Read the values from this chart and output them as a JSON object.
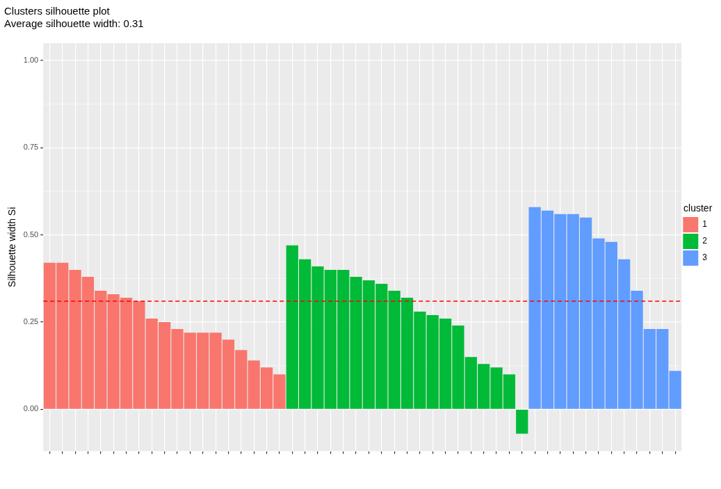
{
  "chart_data": {
    "type": "bar",
    "title": "Clusters silhouette plot",
    "subtitle": "Average silhouette width: 0.31",
    "ylabel": "Silhouette width Si",
    "legend_title": "cluster",
    "categories": [
      null,
      null,
      null,
      null,
      null,
      null,
      null,
      null,
      null,
      null,
      null,
      null,
      null,
      null,
      null,
      null,
      null,
      null,
      null,
      null,
      null,
      null,
      null,
      null,
      null,
      null,
      null,
      null,
      null,
      null,
      null,
      null,
      null,
      null,
      null,
      null,
      null,
      null,
      null,
      null,
      null,
      null,
      null,
      null,
      null,
      null,
      null,
      null,
      null,
      null
    ],
    "series": [
      {
        "name": "1",
        "color": "#f8766d",
        "values": [
          0.42,
          0.42,
          0.4,
          0.38,
          0.34,
          0.33,
          0.32,
          0.31,
          0.26,
          0.25,
          0.23,
          0.22,
          0.22,
          0.22,
          0.2,
          0.17,
          0.14,
          0.12,
          0.1,
          null,
          null,
          null,
          null,
          null,
          null,
          null,
          null,
          null,
          null,
          null,
          null,
          null,
          null,
          null,
          null,
          null,
          null,
          null,
          null,
          null,
          null,
          null,
          null,
          null,
          null,
          null,
          null,
          null,
          null,
          null
        ]
      },
      {
        "name": "2",
        "color": "#00ba38",
        "values": [
          null,
          null,
          null,
          null,
          null,
          null,
          null,
          null,
          null,
          null,
          null,
          null,
          null,
          null,
          null,
          null,
          null,
          null,
          null,
          0.47,
          0.43,
          0.41,
          0.4,
          0.4,
          0.38,
          0.37,
          0.36,
          0.34,
          0.32,
          0.28,
          0.27,
          0.26,
          0.24,
          0.15,
          0.13,
          0.12,
          0.1,
          -0.07,
          null,
          null,
          null,
          null,
          null,
          null,
          null,
          null,
          null,
          null,
          null,
          null
        ]
      },
      {
        "name": "3",
        "color": "#619cff",
        "values": [
          null,
          null,
          null,
          null,
          null,
          null,
          null,
          null,
          null,
          null,
          null,
          null,
          null,
          null,
          null,
          null,
          null,
          null,
          null,
          null,
          null,
          null,
          null,
          null,
          null,
          null,
          null,
          null,
          null,
          null,
          null,
          null,
          null,
          null,
          null,
          null,
          null,
          null,
          0.58,
          0.57,
          0.56,
          0.56,
          0.55,
          0.49,
          0.48,
          0.43,
          0.34,
          0.23,
          0.23,
          0.11
        ]
      }
    ],
    "ylim": [
      -0.12,
      1.05
    ],
    "yticks": [
      {
        "value": 0,
        "label": "0.00"
      },
      {
        "value": 0.25,
        "label": "0.25"
      },
      {
        "value": 0.5,
        "label": "0.50"
      },
      {
        "value": 0.75,
        "label": "0.75"
      },
      {
        "value": 1,
        "label": "1.00"
      }
    ],
    "ref_lines": [
      {
        "axis": "y",
        "value": 0.31,
        "color": "#ff0000",
        "line_style": "dashed"
      }
    ],
    "grid": true,
    "legend": "right"
  }
}
